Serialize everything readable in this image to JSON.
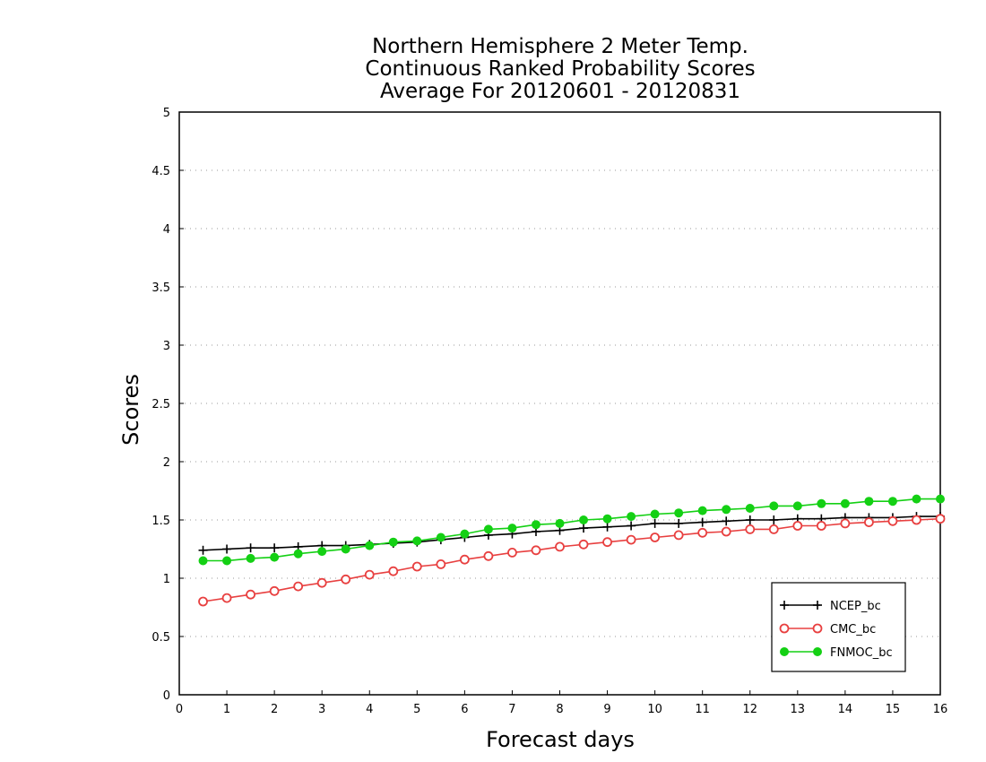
{
  "chart_data": {
    "type": "line",
    "title_lines": [
      "Northern Hemisphere 2 Meter Temp.",
      "Continuous Ranked Probability Scores",
      "Average For 20120601 - 20120831"
    ],
    "xlabel": "Forecast days",
    "ylabel": "Scores",
    "xlim": [
      0,
      16
    ],
    "ylim": [
      0,
      5
    ],
    "x_ticks": [
      0,
      1,
      2,
      3,
      4,
      5,
      6,
      7,
      8,
      9,
      10,
      11,
      12,
      13,
      14,
      15,
      16
    ],
    "x_tick_labels": [
      "0",
      "1",
      "2",
      "3",
      "4",
      "5",
      "6",
      "7",
      "8",
      "9",
      "10",
      "11",
      "12",
      "13",
      "14",
      "15",
      "16"
    ],
    "y_ticks": [
      0,
      0.5,
      1,
      1.5,
      2,
      2.5,
      3,
      3.5,
      4,
      4.5,
      5
    ],
    "y_tick_labels": [
      "0",
      "0.5",
      "1",
      "1.5",
      "2",
      "2.5",
      "3",
      "3.5",
      "4",
      "4.5",
      "5"
    ],
    "grid": "horizontal dotted",
    "legend_position": "bottom-right",
    "x": [
      0.5,
      1.0,
      1.5,
      2.0,
      2.5,
      3.0,
      3.5,
      4.0,
      4.5,
      5.0,
      5.5,
      6.0,
      6.5,
      7.0,
      7.5,
      8.0,
      8.5,
      9.0,
      9.5,
      10.0,
      10.5,
      11.0,
      11.5,
      12.0,
      12.5,
      13.0,
      13.5,
      14.0,
      14.5,
      15.0,
      15.5,
      16.0
    ],
    "series": [
      {
        "name": "NCEP_bc",
        "color": "#000000",
        "marker": "plus",
        "values": [
          1.24,
          1.25,
          1.26,
          1.26,
          1.27,
          1.28,
          1.28,
          1.29,
          1.3,
          1.31,
          1.33,
          1.35,
          1.37,
          1.38,
          1.4,
          1.41,
          1.43,
          1.44,
          1.45,
          1.47,
          1.47,
          1.48,
          1.49,
          1.5,
          1.5,
          1.51,
          1.51,
          1.52,
          1.52,
          1.52,
          1.53,
          1.53
        ]
      },
      {
        "name": "CMC_bc",
        "color": "#e84040",
        "marker": "open-circle",
        "values": [
          0.8,
          0.83,
          0.86,
          0.89,
          0.93,
          0.96,
          0.99,
          1.03,
          1.06,
          1.1,
          1.12,
          1.16,
          1.19,
          1.22,
          1.24,
          1.27,
          1.29,
          1.31,
          1.33,
          1.35,
          1.37,
          1.39,
          1.4,
          1.42,
          1.42,
          1.45,
          1.45,
          1.47,
          1.48,
          1.49,
          1.5,
          1.51
        ]
      },
      {
        "name": "FNMOC_bc",
        "color": "#14d014",
        "marker": "filled-circle",
        "values": [
          1.15,
          1.15,
          1.17,
          1.18,
          1.21,
          1.23,
          1.25,
          1.28,
          1.31,
          1.32,
          1.35,
          1.38,
          1.42,
          1.43,
          1.46,
          1.47,
          1.5,
          1.51,
          1.53,
          1.55,
          1.56,
          1.58,
          1.59,
          1.6,
          1.62,
          1.62,
          1.64,
          1.64,
          1.66,
          1.66,
          1.68,
          1.68
        ]
      }
    ]
  }
}
